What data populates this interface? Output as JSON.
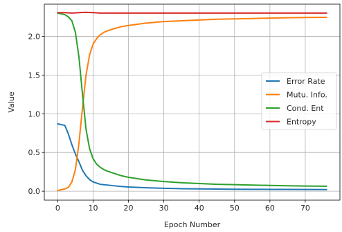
{
  "chart_data": {
    "type": "line",
    "title": "",
    "xlabel": "Epoch Number",
    "ylabel": "Value",
    "xlim": [
      -3.8,
      79.8
    ],
    "ylim": [
      -0.115,
      2.415
    ],
    "xticks": [
      0,
      10,
      20,
      30,
      40,
      50,
      60,
      70
    ],
    "yticks": [
      0.0,
      0.5,
      1.0,
      1.5,
      2.0
    ],
    "ytick_labels": [
      "0.0",
      "0.5",
      "1.0",
      "1.5",
      "2.0"
    ],
    "grid": true,
    "legend_position": "center-right",
    "series": [
      {
        "name": "Error Rate",
        "color": "#1f77b4",
        "x": [
          0,
          2,
          3,
          4,
          5,
          6,
          7,
          8,
          9,
          10,
          12,
          14,
          16,
          18,
          20,
          25,
          30,
          35,
          40,
          45,
          50,
          55,
          60,
          65,
          70,
          76
        ],
        "y": [
          0.87,
          0.85,
          0.74,
          0.6,
          0.48,
          0.38,
          0.27,
          0.2,
          0.15,
          0.12,
          0.09,
          0.08,
          0.07,
          0.062,
          0.055,
          0.045,
          0.038,
          0.033,
          0.03,
          0.028,
          0.026,
          0.025,
          0.024,
          0.023,
          0.022,
          0.021
        ]
      },
      {
        "name": "Mutu. Info.",
        "color": "#ff7f0e",
        "x": [
          0,
          2,
          3,
          4,
          5,
          6,
          7,
          8,
          9,
          10,
          11,
          12,
          13,
          14,
          16,
          18,
          20,
          25,
          30,
          35,
          40,
          45,
          50,
          55,
          60,
          65,
          70,
          76
        ],
        "y": [
          0.01,
          0.03,
          0.05,
          0.12,
          0.28,
          0.62,
          1.08,
          1.5,
          1.76,
          1.9,
          1.97,
          2.02,
          2.05,
          2.07,
          2.1,
          2.125,
          2.14,
          2.17,
          2.19,
          2.2,
          2.21,
          2.22,
          2.225,
          2.23,
          2.235,
          2.24,
          2.243,
          2.245
        ]
      },
      {
        "name": "Cond. Ent",
        "color": "#2ca02c",
        "x": [
          0,
          2,
          3,
          4,
          5,
          6,
          7,
          8,
          9,
          10,
          11,
          12,
          13,
          14,
          16,
          18,
          20,
          25,
          30,
          35,
          40,
          45,
          50,
          55,
          60,
          65,
          70,
          76
        ],
        "y": [
          2.3,
          2.28,
          2.25,
          2.2,
          2.05,
          1.73,
          1.25,
          0.8,
          0.55,
          0.42,
          0.35,
          0.31,
          0.28,
          0.26,
          0.23,
          0.2,
          0.18,
          0.145,
          0.125,
          0.11,
          0.1,
          0.09,
          0.085,
          0.08,
          0.075,
          0.07,
          0.067,
          0.065
        ]
      },
      {
        "name": "Entropy",
        "color": "#d62728",
        "x": [
          0,
          2,
          4,
          6,
          8,
          10,
          12,
          15,
          20,
          30,
          40,
          50,
          60,
          70,
          76
        ],
        "y": [
          2.305,
          2.305,
          2.3,
          2.305,
          2.31,
          2.305,
          2.3,
          2.3,
          2.3,
          2.3,
          2.3,
          2.3,
          2.3,
          2.3,
          2.3
        ]
      }
    ]
  }
}
